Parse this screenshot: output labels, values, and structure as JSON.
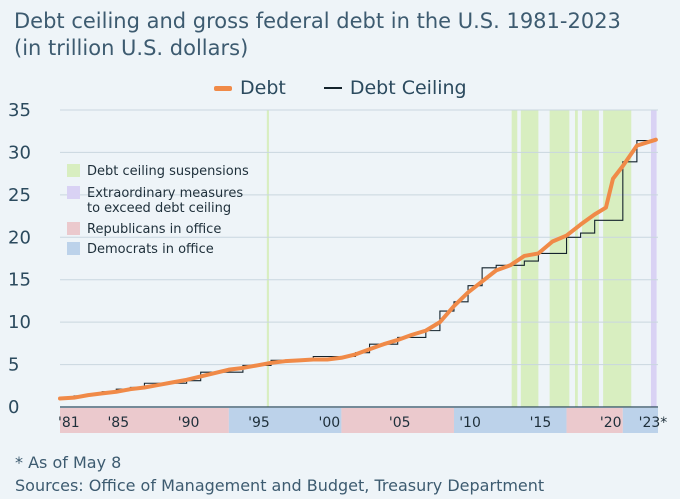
{
  "title_line1": "Debt ceiling and gross federal debt in the U.S. 1981-2023",
  "title_line2": "(in trillion U.S. dollars)",
  "note": "* As of May 8",
  "sources": "Sources: Office of Management and Budget, Treasury Department",
  "legend": {
    "debt": "Debt",
    "ceiling": "Debt Ceiling"
  },
  "colors": {
    "debt": "#f08a48",
    "ceiling": "#14232c",
    "suspension": "#d8eec0",
    "extraordinary": "#d9d2f4",
    "republican": "#ebc9cd",
    "democrat": "#bcd2ea",
    "background": "#eef4f8"
  },
  "chart_data": {
    "type": "line",
    "title": "Debt ceiling and gross federal debt in the U.S. 1981-2023 (in trillion U.S. dollars)",
    "xlabel": "",
    "ylabel": "",
    "xlim": [
      1981,
      2023.5
    ],
    "ylim": [
      0,
      35
    ],
    "y_ticks": [
      0,
      5,
      10,
      15,
      20,
      25,
      30,
      35
    ],
    "x_ticks": [
      {
        "x": 1981,
        "label": "'81"
      },
      {
        "x": 1985,
        "label": "'85"
      },
      {
        "x": 1990,
        "label": "'90"
      },
      {
        "x": 1995,
        "label": "'95"
      },
      {
        "x": 2000,
        "label": "'00"
      },
      {
        "x": 2005,
        "label": "'05"
      },
      {
        "x": 2010,
        "label": "'10"
      },
      {
        "x": 2015,
        "label": "'15"
      },
      {
        "x": 2020,
        "label": "'20"
      },
      {
        "x": 2023,
        "label": "'23*"
      }
    ],
    "grid": true,
    "series": [
      {
        "name": "Debt",
        "x": [
          1981,
          1982,
          1983,
          1984,
          1985,
          1986,
          1987,
          1988,
          1989,
          1990,
          1991,
          1992,
          1993,
          1994,
          1995,
          1996,
          1997,
          1998,
          1999,
          2000,
          2001,
          2002,
          2003,
          2004,
          2005,
          2006,
          2007,
          2008,
          2009,
          2010,
          2011,
          2012,
          2013,
          2014,
          2015,
          2016,
          2017,
          2018,
          2019,
          2019.8,
          2020.3,
          2021,
          2022,
          2023.35
        ],
        "values": [
          1.0,
          1.1,
          1.4,
          1.6,
          1.8,
          2.1,
          2.3,
          2.6,
          2.9,
          3.2,
          3.6,
          4.0,
          4.4,
          4.6,
          4.9,
          5.2,
          5.4,
          5.5,
          5.6,
          5.6,
          5.8,
          6.2,
          6.8,
          7.4,
          7.9,
          8.5,
          9.0,
          10.0,
          11.9,
          13.5,
          14.8,
          16.1,
          16.7,
          17.8,
          18.1,
          19.5,
          20.2,
          21.5,
          22.7,
          23.5,
          26.9,
          28.4,
          30.8,
          31.5
        ]
      },
      {
        "name": "Debt Ceiling",
        "x": [
          1981,
          1982,
          1983,
          1984,
          1985,
          1986,
          1987,
          1988,
          1989,
          1990,
          1991,
          1992,
          1993,
          1994,
          1995,
          1996,
          1997,
          1998,
          1999,
          2000,
          2001,
          2002,
          2003,
          2004,
          2005,
          2006,
          2007,
          2008,
          2009,
          2010,
          2011,
          2012,
          2013,
          2014,
          2015,
          2016,
          2017,
          2018,
          2019,
          2020,
          2021,
          2022,
          2023.35
        ],
        "values": [
          1.1,
          1.3,
          1.5,
          1.8,
          2.1,
          2.3,
          2.8,
          2.8,
          2.8,
          3.1,
          4.1,
          4.1,
          4.1,
          4.9,
          4.9,
          5.5,
          5.5,
          5.5,
          5.95,
          5.95,
          5.95,
          6.4,
          7.4,
          7.4,
          8.2,
          8.2,
          9.0,
          11.3,
          12.4,
          14.3,
          16.4,
          16.7,
          16.7,
          17.2,
          18.1,
          18.1,
          20.0,
          20.5,
          22.0,
          22.0,
          28.9,
          31.4,
          31.4
        ]
      }
    ],
    "shaded_periods": {
      "debt_ceiling_suspensions": [
        [
          1995.7,
          1995.85
        ],
        [
          2013.1,
          2013.5
        ],
        [
          2013.75,
          2015.0
        ],
        [
          2015.8,
          2017.2
        ],
        [
          2017.6,
          2017.8
        ],
        [
          2018.1,
          2019.3
        ],
        [
          2019.6,
          2021.6
        ]
      ],
      "extraordinary_measures": [
        [
          2023.0,
          2023.4
        ]
      ]
    },
    "administrations": [
      {
        "party": "Republicans in office",
        "from": 1981,
        "to": 1993
      },
      {
        "party": "Democrats in office",
        "from": 1993,
        "to": 2001
      },
      {
        "party": "Republicans in office",
        "from": 2001,
        "to": 2009
      },
      {
        "party": "Democrats in office",
        "from": 2009,
        "to": 2017
      },
      {
        "party": "Republicans in office",
        "from": 2017,
        "to": 2021
      },
      {
        "party": "Democrats in office",
        "from": 2021,
        "to": 2023.5
      }
    ],
    "inset_legend": [
      {
        "label": "Debt ceiling suspensions",
        "key": "suspension"
      },
      {
        "label": "Extraordinary measures to exceed debt ceiling",
        "key": "extraordinary"
      },
      {
        "label": "Republicans in office",
        "key": "republican"
      },
      {
        "label": "Democrats in office",
        "key": "democrat"
      }
    ],
    "legend_position": "top"
  }
}
